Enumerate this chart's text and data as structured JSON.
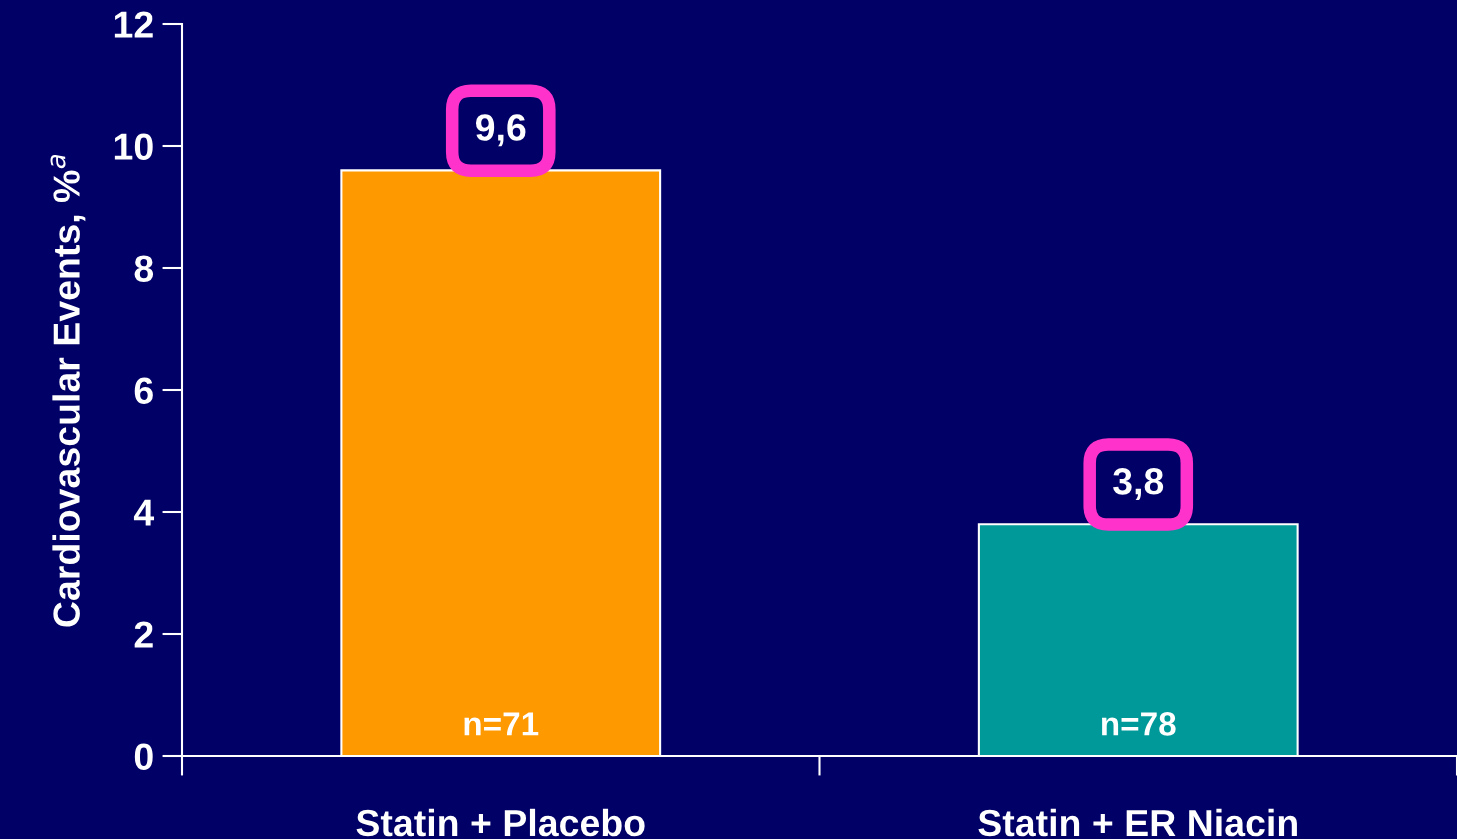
{
  "chart_data": {
    "type": "bar",
    "ylabel": "Cardiovascular Events, %$^{a}$",
    "categories": [
      "Statin + Placebo",
      "Statin + ER Niacin"
    ],
    "values": [
      9.6,
      3.8
    ],
    "colors": [
      "#ff9900",
      "#009999"
    ],
    "value_labels": [
      "9,6",
      "3,8"
    ],
    "annotations": [
      "n=71",
      "n=78"
    ],
    "ylim": [
      0,
      12
    ],
    "yticks": [
      0,
      2,
      4,
      6,
      8,
      10,
      12
    ],
    "grid": false,
    "legend": false
  }
}
